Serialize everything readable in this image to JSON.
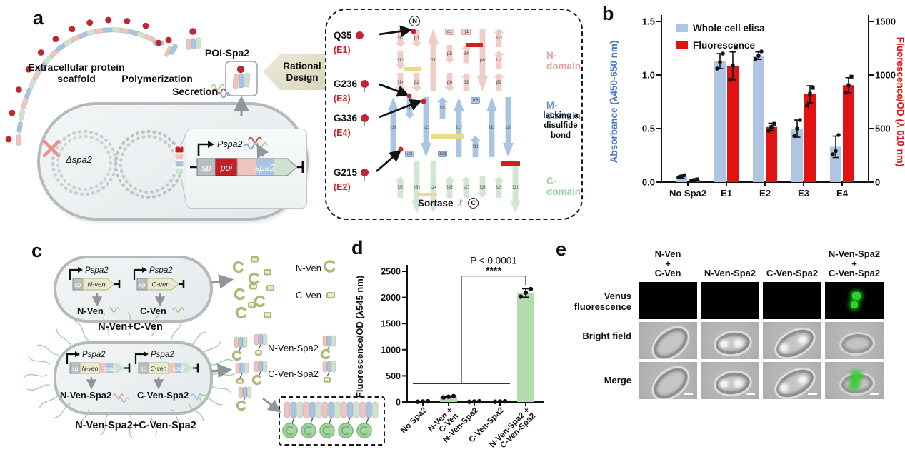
{
  "panels": {
    "a": "a",
    "b": "b",
    "c": "c",
    "d": "d",
    "e": "e"
  },
  "colors": {
    "elisa_bar": "#aec6e4",
    "fluor_bar": "#e21212",
    "left_axis": "#4a78c5",
    "right_axis": "#e21212",
    "venus_bar": "#b2dbae",
    "n_domain": "#f1cdc8",
    "m_domain": "#aac5e4",
    "c_domain": "#d2e6d4",
    "n_stroke": "#d8a8a2",
    "m_stroke": "#7f9fc9",
    "c_stroke": "#a5c9ab",
    "n_label": "#dfa3a3",
    "m_label": "#6e94c9",
    "c_label": "#99cc9f",
    "accent_red": "#c3242e",
    "olive": "#b4b478",
    "olive_fill": "#e9e9cf",
    "yellow": "#ecd98a",
    "pink": "#efc4bf",
    "blue": "#a9c4e3",
    "green": "#cde3cf",
    "flagella": "#a5d0a0",
    "gene_red": "#c32026",
    "gene_gray": "#b9bdc0"
  },
  "panel_a": {
    "scaffold_label": "Extracellular protein scaffold",
    "polymerization": "Polymerization",
    "poi_spa2": "POI-Spa2",
    "rational_design": "Rational Design",
    "secretion": "Secretion",
    "delta_spa2": "Δspa2",
    "pspa2": "Pspa2",
    "gene_sp": "sp",
    "gene_poi": "poi",
    "gene_spa2": "spa2",
    "n_label": "N",
    "c_label": "C",
    "sortase": "Sortase",
    "icons": {
      "scissors": "✂",
      "cross": "✕"
    },
    "mutations": [
      {
        "site": "Q35",
        "variant": "(E1)"
      },
      {
        "site": "G236",
        "variant": "(E3)"
      },
      {
        "site": "G336",
        "variant": "(E4)"
      },
      {
        "site": "G215",
        "variant": "(E2)"
      }
    ],
    "domains": [
      {
        "name": "N-domain",
        "columns": [
          [
            {
              "l": "β12",
              "k": "d"
            },
            {
              "l": "β13",
              "k": "d"
            },
            {
              "l": "β14",
              "k": "d"
            }
          ],
          [
            {
              "l": "β1",
              "k": "d"
            },
            {
              "l": "β2",
              "k": "d"
            }
          ],
          [
            {
              "l": "β7",
              "k": "u",
              "t": 1
            }
          ],
          [
            {
              "l": "α1",
              "k": "b"
            },
            {
              "l": "β5",
              "k": "d"
            },
            {
              "l": "β6",
              "k": "d"
            }
          ],
          [
            {
              "l": "η1",
              "k": "b"
            },
            {
              "l": "β4",
              "k": "u"
            },
            {
              "l": "β3",
              "k": "u"
            }
          ],
          [
            {
              "l": "β8",
              "k": "d",
              "t": 1
            }
          ],
          [
            {
              "l": "β11",
              "k": "u"
            },
            {
              "l": "β10",
              "k": "u"
            },
            {
              "l": "β9",
              "k": "u"
            }
          ]
        ]
      },
      {
        "name": "M-domain",
        "note": "lacking a disulfide bond",
        "columns": [
          [
            {
              "l": "β16",
              "k": "u",
              "t": 1
            }
          ],
          [
            {
              "l": "β15",
              "k": "d"
            },
            {
              "l": "α2",
              "k": "b"
            }
          ],
          [
            {
              "l": "β23",
              "k": "d",
              "t": 1
            }
          ],
          [
            {
              "l": "β22",
              "k": "u"
            },
            {
              "l": "β21",
              "k": "b"
            }
          ],
          [
            {
              "l": "β17",
              "k": "u",
              "t": 1
            }
          ],
          [
            {
              "l": "α3",
              "k": "b"
            },
            {
              "l": "β19",
              "k": "u"
            }
          ],
          [
            {
              "l": "β18",
              "k": "u",
              "t": 1
            }
          ],
          [
            {
              "l": "β20",
              "k": "d",
              "t": 1
            }
          ]
        ]
      },
      {
        "name": "C-domain",
        "columns": [
          [
            {
              "l": "β30",
              "k": "u"
            }
          ],
          [
            {
              "l": "β31",
              "k": "d",
              "t": 1
            }
          ],
          [
            {
              "l": "β24",
              "k": "d",
              "t": 1
            }
          ],
          [
            {
              "l": "β28",
              "k": "u"
            }
          ],
          [
            {
              "l": "β27",
              "k": "u"
            }
          ],
          [
            {
              "l": "β26",
              "k": "d"
            }
          ],
          [
            {
              "l": "β25",
              "k": "u"
            }
          ],
          [
            {
              "l": "β29",
              "k": "d",
              "t": 1
            }
          ]
        ]
      }
    ]
  },
  "chart_b": {
    "type": "bar",
    "categories": [
      "No Spa2",
      "E1",
      "E2",
      "E3",
      "E4"
    ],
    "series": [
      {
        "name": "Whole cell elisa",
        "axis": "left",
        "marker": "circle",
        "values": [
          0.05,
          1.13,
          1.18,
          0.5,
          0.33
        ],
        "errors": [
          0.012,
          0.07,
          0.035,
          0.08,
          0.1
        ],
        "points": [
          [
            0.045,
            0.055,
            0.065
          ],
          [
            1.06,
            1.12,
            1.2
          ],
          [
            1.15,
            1.18,
            1.22
          ],
          [
            0.43,
            0.5,
            0.58
          ],
          [
            0.26,
            0.29,
            0.44
          ]
        ]
      },
      {
        "name": "Fluorescence",
        "axis": "right",
        "marker": "square",
        "values": [
          20,
          1085,
          515,
          820,
          905
        ],
        "errors": [
          8,
          130,
          35,
          80,
          70
        ],
        "points": [
          [
            14,
            20,
            26
          ],
          [
            955,
            1090,
            1255
          ],
          [
            480,
            515,
            545
          ],
          [
            715,
            825,
            880
          ],
          [
            835,
            905,
            985
          ]
        ]
      }
    ],
    "left_axis": {
      "label": "Absorbance (λ450-650 nm)",
      "ticks": [
        0.0,
        0.5,
        1.0,
        1.5
      ],
      "max": 1.5
    },
    "right_axis": {
      "label": "Fluorescence/OD (λ 610 nm)",
      "ticks": [
        0,
        500,
        1000,
        1500
      ],
      "max": 1500
    }
  },
  "panel_c": {
    "top": {
      "promoters": [
        "Pspa2",
        "Pspa2"
      ],
      "cassettes": [
        {
          "sp": "sp",
          "gene": "N-ven"
        },
        {
          "sp": "sp",
          "gene": "C-ven"
        }
      ],
      "products": [
        "N-Ven",
        "C-Ven"
      ],
      "label": "N-Ven+C-Ven"
    },
    "bottom": {
      "promoters": [
        "Pspa2",
        "Pspa2"
      ],
      "cassettes": [
        {
          "sp": "sp",
          "gene": "N-ven",
          "spa2": "spa2"
        },
        {
          "sp": "sp",
          "gene": "C-ven",
          "spa2": "spa2"
        }
      ],
      "products": [
        "N-Ven-Spa2",
        "C-Ven-Spa2"
      ],
      "label": "N-Ven-Spa2+C-Ven-Spa2"
    },
    "legend_top": [
      "N-Ven",
      "C-Ven"
    ],
    "legend_bottom": [
      "N-Ven-Spa2",
      "C-Ven-Spa2"
    ]
  },
  "chart_d": {
    "type": "bar",
    "categories": [
      [
        "No Spa2"
      ],
      [
        "N-Ven +",
        "C-Ven"
      ],
      [
        "N-Ven-Spa2"
      ],
      [
        "C-Ven-Spa2"
      ],
      [
        "N-Ven-Spa2 +",
        "C-Ven-Spa2"
      ]
    ],
    "values": [
      8,
      100,
      8,
      8,
      2085
    ],
    "errors": [
      null,
      null,
      null,
      null,
      80
    ],
    "points": [
      [
        4,
        8,
        13
      ],
      [
        88,
        100,
        112
      ],
      [
        4,
        8,
        13
      ],
      [
        4,
        8,
        13
      ],
      [
        2015,
        2090,
        2160
      ]
    ],
    "ylabel": "Fluorescence/OD (λ545 nm)",
    "yticks": [
      0,
      500,
      1000,
      1500,
      2000,
      2500
    ],
    "ymax": 2500,
    "significance": {
      "p_label": "P < 0.0001",
      "stars": "****"
    }
  },
  "panel_e": {
    "col_headers": [
      [
        "N-Ven",
        "+",
        "C-Ven"
      ],
      [
        "N-Ven-Spa2"
      ],
      [
        "C-Ven-Spa2"
      ],
      [
        "N-Ven-Spa2",
        "+",
        "C-Ven-Spa2"
      ]
    ],
    "row_labels": [
      "Venus fluorescence",
      "Bright field",
      "Merge"
    ]
  }
}
